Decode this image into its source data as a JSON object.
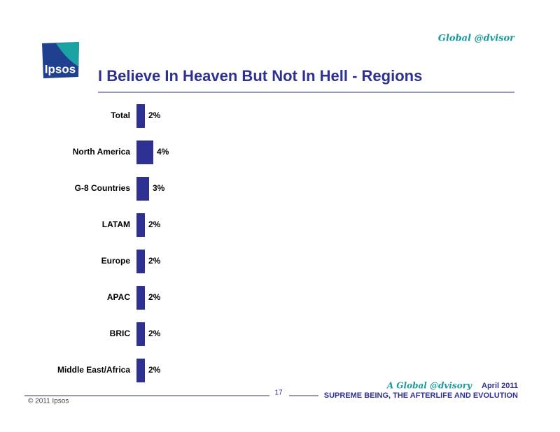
{
  "header": {
    "brand": "Global @dvisor",
    "logo": "Ipsos"
  },
  "chart_data": {
    "type": "bar",
    "orientation": "horizontal",
    "title": "I Believe In Heaven But Not In Hell - Regions",
    "categories": [
      "Total",
      "North America",
      "G-8 Countries",
      "LATAM",
      "Europe",
      "APAC",
      "BRIC",
      "Middle East/Africa"
    ],
    "values": [
      2,
      4,
      3,
      2,
      2,
      2,
      2,
      2
    ],
    "value_labels": [
      "2%",
      "4%",
      "3%",
      "2%",
      "2%",
      "2%",
      "2%",
      "2%"
    ],
    "color": "#2e3192"
  },
  "footer": {
    "page": "17",
    "report": "A Global @dvisory",
    "date": "April 2011",
    "subtitle": "SUPREME BEING, THE AFTERLIFE AND EVOLUTION",
    "copyright": "© 2011 Ipsos"
  }
}
